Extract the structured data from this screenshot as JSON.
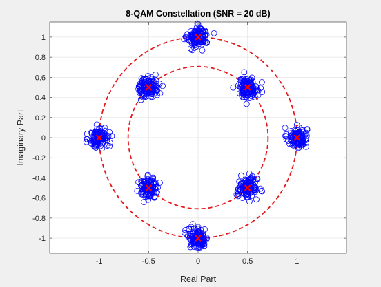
{
  "chart_data": {
    "type": "scatter",
    "title": "8-QAM Constellation (SNR = 20 dB)",
    "xlabel": "Real Part",
    "ylabel": "Imaginary Part",
    "xlim": [
      -1.5,
      1.5
    ],
    "ylim": [
      -1.15,
      1.15
    ],
    "xticks": [
      -1,
      -0.5,
      0,
      0.5,
      1
    ],
    "xtick_labels": [
      "-1",
      "-0.5",
      "0",
      "0.5",
      "1"
    ],
    "yticks": [
      1,
      0.8,
      0.6,
      0.4,
      0.2,
      0,
      -0.2,
      -0.4,
      -0.6,
      -0.8,
      -1
    ],
    "ytick_labels": [
      "1",
      "0.8",
      "0.6",
      "0.4",
      "0.2",
      "0",
      "-0.2",
      "-0.4",
      "-0.6",
      "-0.8",
      "-1"
    ],
    "grid": true,
    "ideal_points": [
      {
        "x": 1,
        "y": 0
      },
      {
        "x": 0,
        "y": 1
      },
      {
        "x": -1,
        "y": 0
      },
      {
        "x": 0,
        "y": -1
      },
      {
        "x": 0.5,
        "y": 0.5
      },
      {
        "x": -0.5,
        "y": 0.5
      },
      {
        "x": -0.5,
        "y": -0.5
      },
      {
        "x": 0.5,
        "y": -0.5
      }
    ],
    "noise_std": 0.05,
    "samples_per_point": 125,
    "reference_circles": [
      {
        "radius": 1.0,
        "style": "dashed",
        "color": "#e41a1c"
      },
      {
        "radius": 0.7071,
        "style": "dashed",
        "color": "#e41a1c"
      }
    ],
    "received_marker_color": "#0000ff",
    "ideal_marker_color": "#ff0000"
  }
}
